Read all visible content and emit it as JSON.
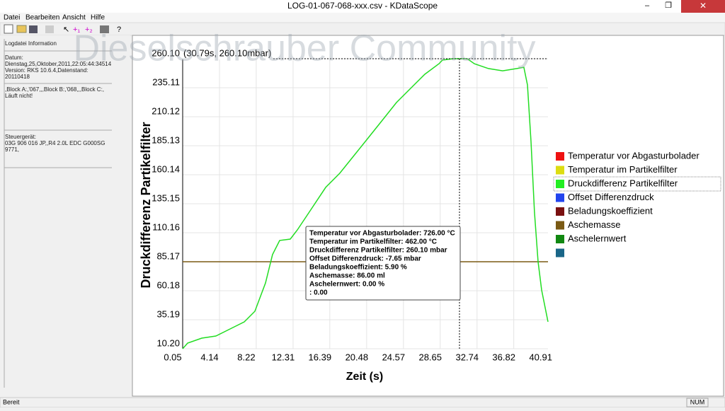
{
  "window": {
    "title": "LOG-01-067-068-xxx.csv - KDataScope"
  },
  "menu": [
    "Datei",
    "Bearbeiten",
    "Ansicht",
    "Hilfe"
  ],
  "watermark": "Dieselschrauber Community",
  "info_panel": {
    "title": "Logdatei Information",
    "lines": [
      "Datum:",
      "Dienstag,25,Oktober,2011,22:05:44:34514",
      "Version: RKS 10.6.4,Datenstand:",
      "20110418"
    ],
    "block": [
      ",Block A:,'067,,,Block B:,'068,,,Block C:,",
      "Läuft nicht!"
    ],
    "ecu": [
      "Steuergerät:",
      "03G 906 016 JP,,R4 2.0L EDC G000SG",
      "9771,"
    ]
  },
  "chart_data": {
    "type": "line",
    "ylabel": "Druckdifferenz Partikelfilter",
    "xlabel": "Zeit (s)",
    "xlim": [
      0.05,
      40.62
    ],
    "ylim": [
      10.2,
      260.1
    ],
    "xticks": [
      0.05,
      4.14,
      8.22,
      12.31,
      16.39,
      20.48,
      24.57,
      28.65,
      32.74,
      36.82,
      40.91
    ],
    "yticks": [
      {
        "value": 10.2,
        "label": "10.20"
      },
      35.19,
      60.18,
      85.17,
      110.16,
      135.15,
      160.14,
      185.13,
      210.12,
      235.11,
      {
        "value": 260.1,
        "label": "260.10"
      }
    ],
    "cursor": {
      "x": 30.79,
      "y": 260.1,
      "label": "(30.79s, 260.10mbar)"
    },
    "hlines": [
      {
        "value": 85.2,
        "color": "#7a5a14"
      }
    ],
    "x": [
      0.05,
      0.6,
      2.17,
      3.74,
      5.32,
      6.89,
      8.07,
      9.25,
      10.03,
      10.82,
      12.0,
      12.79,
      14.36,
      15.93,
      17.5,
      19.07,
      20.64,
      22.22,
      23.79,
      25.36,
      26.94,
      28.51,
      28.9,
      30.08,
      31.65,
      32.44,
      34.01,
      35.58,
      37.16,
      37.94,
      38.34,
      38.73,
      39.12,
      39.52,
      39.91,
      40.62
    ],
    "series": [
      {
        "name": "Druckdifferenz Partikelfilter",
        "color": "#22dd22",
        "values": [
          10.2,
          15.08,
          19.34,
          21.17,
          27.27,
          33.36,
          42.5,
          66.9,
          91.3,
          103.5,
          104.7,
          112.6,
          130.9,
          149.2,
          161.4,
          176.6,
          191.8,
          207.1,
          222.3,
          234.5,
          246.7,
          255.8,
          258.9,
          260.1,
          260.1,
          255.8,
          251.6,
          249.7,
          251.6,
          252.7,
          237.5,
          188.8,
          127.8,
          85.2,
          60.8,
          33.4
        ]
      }
    ],
    "tooltip": [
      "Temperatur vor Abgasturbolader: 726.00 °C",
      "Temperatur im Partikelfilter: 462.00 °C",
      "Druckdifferenz Partikelfilter: 260.10 mbar",
      "Offset Differenzdruck: -7.65 mbar",
      "Beladungskoeffizient: 5.90  %",
      "Aschemasse: 86.00 ml",
      "Aschelernwert: 0.00  %",
      ": 0.00"
    ],
    "legend": [
      {
        "name": "Temperatur vor Abgasturbolader",
        "color": "#ee1111"
      },
      {
        "name": "Temperatur im Partikelfilter",
        "color": "#dddd11"
      },
      {
        "name": "Druckdifferenz Partikelfilter",
        "color": "#22ee22"
      },
      {
        "name": "Offset Differenzdruck",
        "color": "#2244ee"
      },
      {
        "name": "Beladungskoeffizient",
        "color": "#7a1010"
      },
      {
        "name": "Aschemasse",
        "color": "#7a5a14"
      },
      {
        "name": "Aschelernwert",
        "color": "#118811"
      },
      {
        "color": "#1a6688"
      }
    ]
  },
  "status": {
    "left": "Bereit",
    "right": "NUM"
  }
}
